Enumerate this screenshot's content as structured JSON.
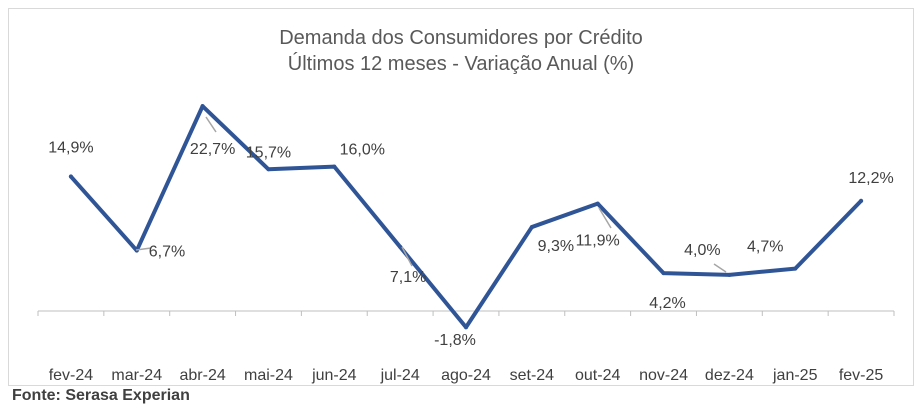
{
  "chart_data": {
    "type": "line",
    "title": "Demanda dos Consumidores por Crédito",
    "subtitle": "Últimos 12 meses - Variação Anual (%)",
    "categories": [
      "fev-24",
      "mar-24",
      "abr-24",
      "mai-24",
      "jun-24",
      "jul-24",
      "ago-24",
      "set-24",
      "out-24",
      "nov-24",
      "dez-24",
      "jan-25",
      "fev-25"
    ],
    "series": [
      {
        "values": [
          14.9,
          6.7,
          22.7,
          15.7,
          16.0,
          7.1,
          -1.8,
          9.3,
          11.9,
          4.2,
          4.0,
          4.7,
          12.2
        ],
        "labels": [
          "14,9%",
          "6,7%",
          "22,7%",
          "15,7%",
          "16,0%",
          "7,1%",
          "-1,8%",
          "9,3%",
          "11,9%",
          "4,2%",
          "4,0%",
          "4,7%",
          "12,2%"
        ]
      }
    ],
    "ylim": [
      -6,
      32
    ],
    "grid": false,
    "line_color": "#2f5597"
  },
  "source": "Fonte: Serasa Experian"
}
